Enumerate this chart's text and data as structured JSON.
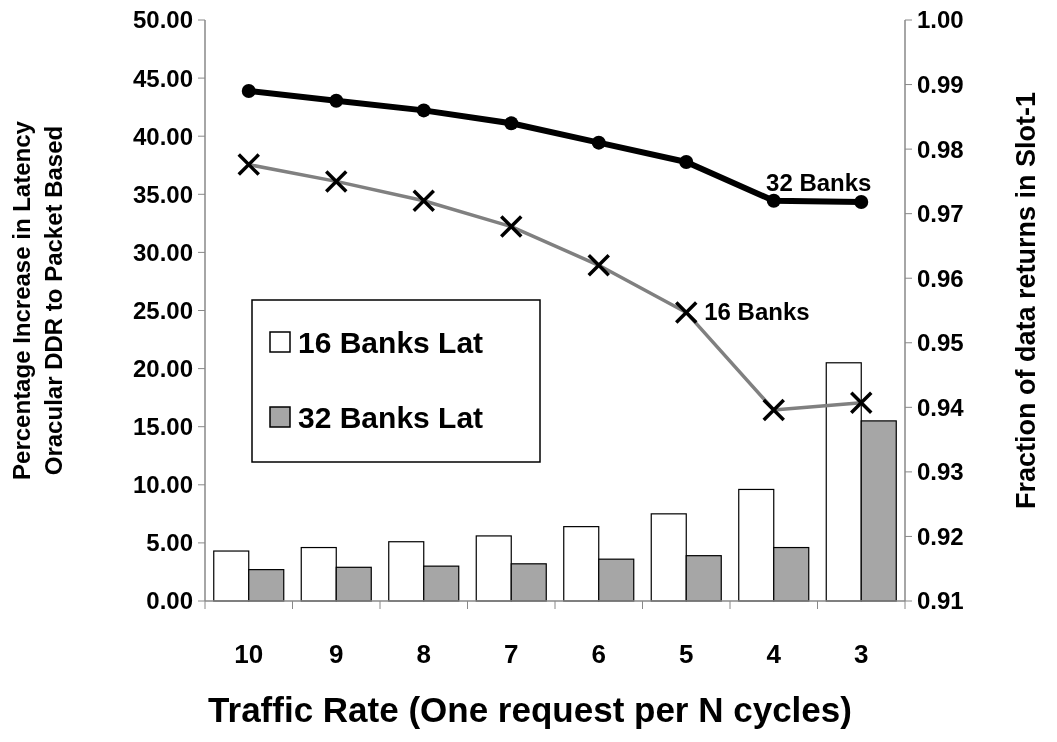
{
  "chart_data": {
    "type": "bar",
    "xlabel": "Traffic Rate (One request per N cycles)",
    "ylabel": "Percentage Increase in Latency\nOracular DDR to Packet Based",
    "y2label": "Fraction of data returns in Slot-1",
    "categories": [
      "10",
      "9",
      "8",
      "7",
      "6",
      "5",
      "4",
      "3"
    ],
    "series": [
      {
        "name": "16 Banks Lat",
        "color": "#ffffff",
        "values": [
          4.3,
          4.6,
          5.1,
          5.6,
          6.4,
          7.5,
          9.6,
          20.5
        ]
      },
      {
        "name": "32 Banks Lat",
        "color": "#a6a6a6",
        "values": [
          2.7,
          2.9,
          3.0,
          3.2,
          3.6,
          3.9,
          4.6,
          15.5
        ]
      },
      {
        "name": "32 Banks",
        "type": "line",
        "axis": "y2",
        "color": "#000000",
        "marker": "circle",
        "values": [
          0.989,
          0.9875,
          0.986,
          0.984,
          0.981,
          0.978,
          0.972,
          0.9718
        ]
      },
      {
        "name": "16 Banks",
        "type": "line",
        "axis": "y2",
        "color": "#808080",
        "marker": "cross",
        "values": [
          0.9776,
          0.975,
          0.972,
          0.968,
          0.962,
          0.9547,
          0.9396,
          0.9407
        ]
      }
    ],
    "ylim": [
      0,
      50
    ],
    "yticks": [
      {
        "value": 0,
        "label": "0.00"
      },
      {
        "value": 5,
        "label": "5.00"
      },
      {
        "value": 10,
        "label": "10.00"
      },
      {
        "value": 15,
        "label": "15.00"
      },
      {
        "value": 20,
        "label": "20.00"
      },
      {
        "value": 25,
        "label": "25.00"
      },
      {
        "value": 30,
        "label": "30.00"
      },
      {
        "value": 35,
        "label": "35.00"
      },
      {
        "value": 40,
        "label": "40.00"
      },
      {
        "value": 45,
        "label": "45.00"
      },
      {
        "value": 50,
        "label": "50.00"
      }
    ],
    "y2lim": [
      0.91,
      1.0
    ],
    "y2ticks": [
      0.91,
      0.92,
      0.93,
      0.94,
      0.95,
      0.96,
      0.97,
      0.98,
      0.99,
      {
        "value": 1.0,
        "label": "1.00"
      }
    ],
    "legend": "left",
    "grid": false
  }
}
